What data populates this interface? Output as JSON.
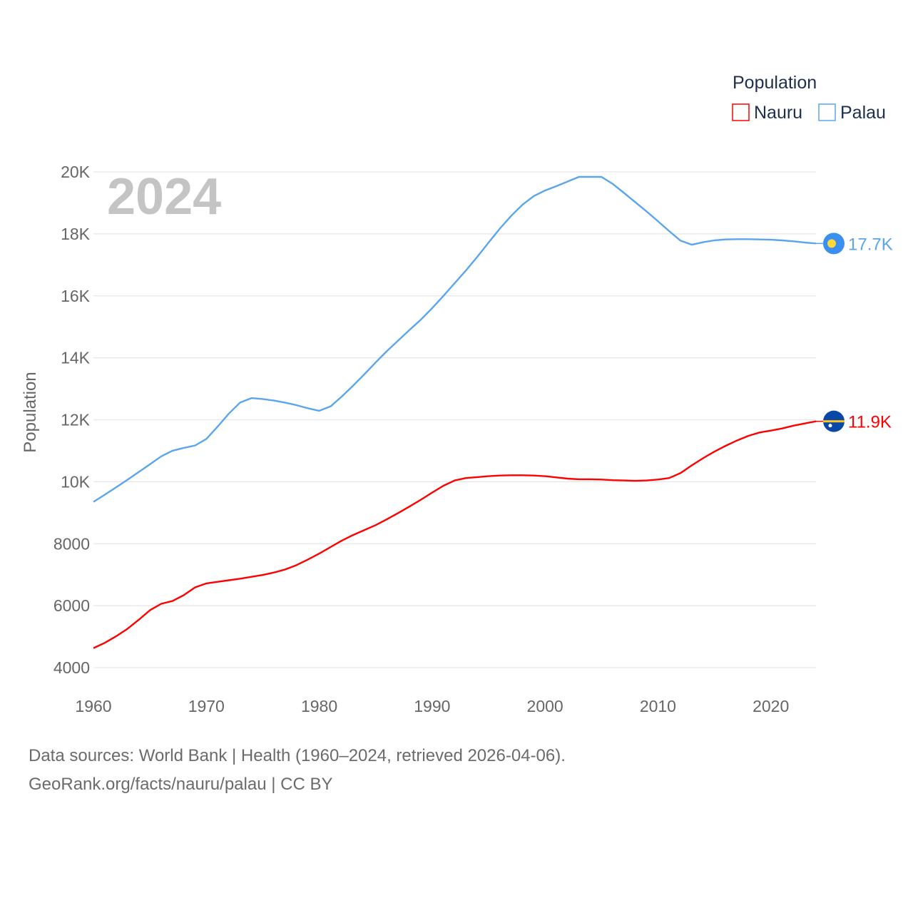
{
  "chart_data": {
    "type": "line",
    "year_label": "2024",
    "ylabel": "Population",
    "legend_title": "Population",
    "legend_placement": "top-right",
    "xlim": [
      1960,
      2024
    ],
    "ylim": [
      4000,
      20000
    ],
    "x_ticks": [
      1960,
      1970,
      1980,
      1990,
      2000,
      2010,
      2020
    ],
    "y_ticks": [
      4000,
      6000,
      8000,
      10000,
      12000,
      14000,
      16000,
      18000,
      20000
    ],
    "y_tick_labels": [
      "4000",
      "6000",
      "8000",
      "10K",
      "12K",
      "14K",
      "16K",
      "18K",
      "20K"
    ],
    "grid": true,
    "x_start": 1960,
    "series": [
      {
        "name": "Nauru",
        "color": "#ff0000",
        "end_label": "11.9K",
        "values": [
          4630,
          4800,
          5010,
          5250,
          5540,
          5850,
          6060,
          6150,
          6340,
          6590,
          6720,
          6770,
          6820,
          6870,
          6930,
          6990,
          7070,
          7170,
          7310,
          7490,
          7680,
          7890,
          8100,
          8280,
          8440,
          8600,
          8790,
          8990,
          9200,
          9420,
          9650,
          9870,
          10040,
          10120,
          10150,
          10180,
          10200,
          10210,
          10210,
          10200,
          10180,
          10140,
          10100,
          10080,
          10080,
          10070,
          10050,
          10040,
          10030,
          10040,
          10070,
          10120,
          10280,
          10530,
          10760,
          10970,
          11160,
          11330,
          11480,
          11590,
          11650,
          11720,
          11810,
          11880,
          11950
        ]
      },
      {
        "name": "Palau",
        "color": "#5aa5ee",
        "end_label": "17.7K",
        "values": [
          9350,
          9580,
          9820,
          10060,
          10310,
          10560,
          10820,
          11000,
          11090,
          11170,
          11380,
          11780,
          12200,
          12560,
          12700,
          12670,
          12620,
          12550,
          12470,
          12370,
          12290,
          12430,
          12750,
          13100,
          13470,
          13850,
          14220,
          14560,
          14900,
          15230,
          15600,
          16000,
          16410,
          16820,
          17260,
          17720,
          18170,
          18580,
          18940,
          19220,
          19400,
          19540,
          19690,
          19840,
          19840,
          19840,
          19610,
          19320,
          19020,
          18720,
          18410,
          18090,
          17780,
          17650,
          17730,
          17790,
          17820,
          17830,
          17830,
          17820,
          17810,
          17790,
          17760,
          17720,
          17690
        ]
      }
    ]
  },
  "footer": {
    "line1": "Data sources: World Bank | Health (1960–2024, retrieved 2026-04-06).",
    "line2": "GeoRank.org/facts/nauru/palau | CC BY"
  }
}
